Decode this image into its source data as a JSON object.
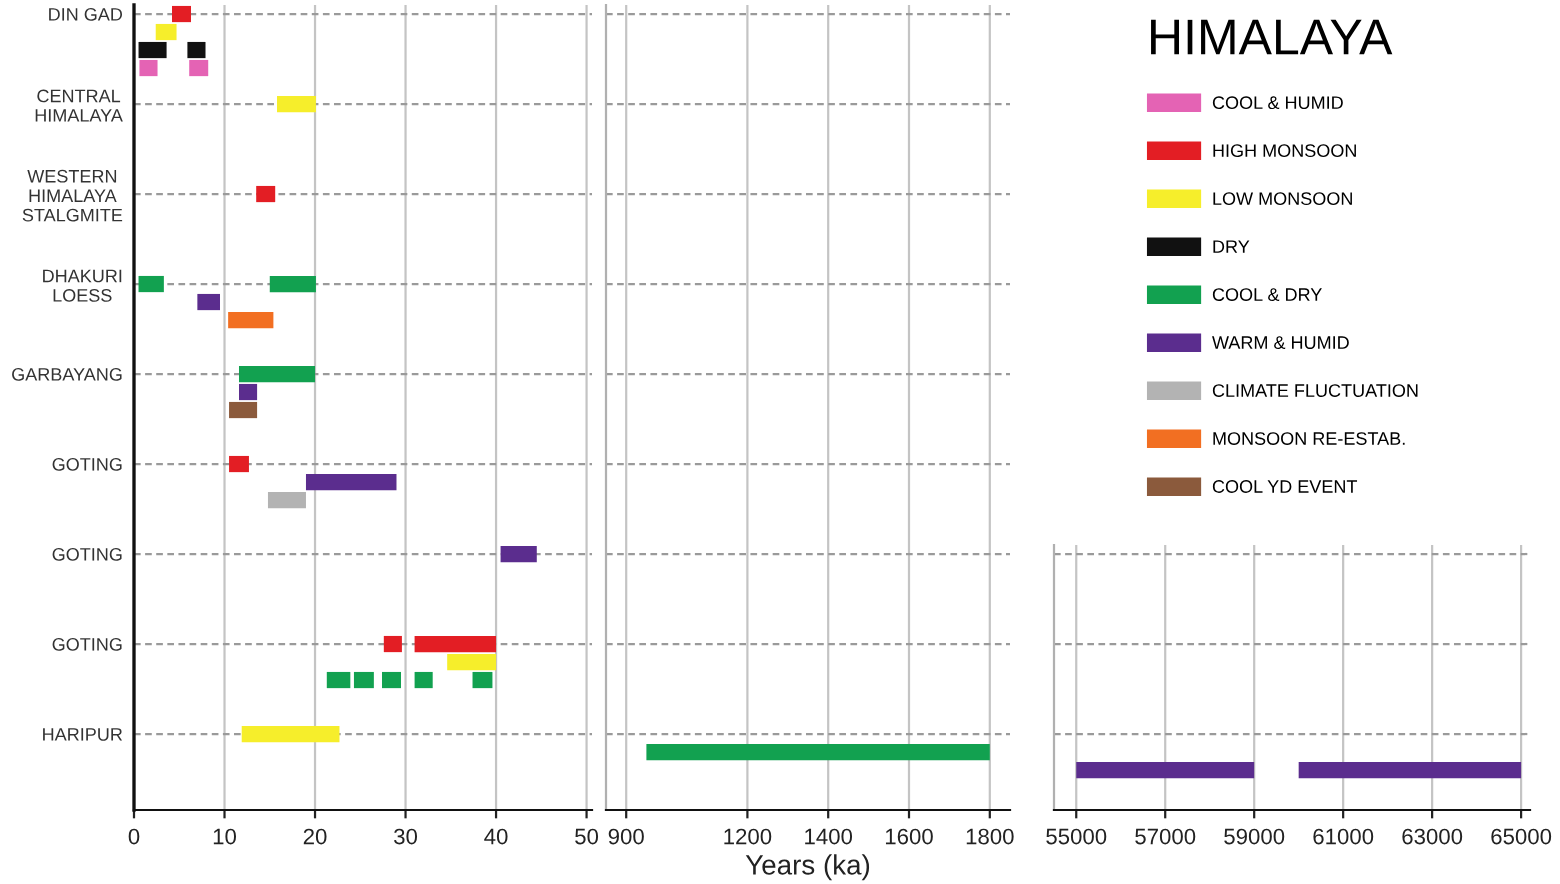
{
  "chart_data": [
    {
      "type": "bar",
      "orientation": "horizontal",
      "categories": [
        "DIN GAD",
        null,
        null,
        null,
        null,
        "CENTRAL\nHIMALAYA",
        null,
        null,
        null,
        null,
        "WESTERN\nHIMALAYA\nSTALGMITE",
        null,
        null,
        null,
        null,
        "DHAKURI\nLOESS",
        null,
        null,
        null,
        null,
        "GARBAYANG",
        null,
        null,
        null,
        null,
        "GOTING",
        null,
        null,
        null,
        null,
        "GOTING",
        null,
        null,
        null,
        null,
        "GOTING",
        null,
        null,
        null,
        null,
        "HARIPUR",
        null,
        null,
        null,
        null
      ],
      "series": [
        {
          "name": "COOL & HUMID",
          "color": "#e463b4",
          "values": [
            null,
            null,
            null,
            2.0,
            null,
            null,
            null,
            null,
            null,
            null,
            null,
            null,
            null,
            null,
            null,
            null,
            null,
            null,
            null,
            null,
            null,
            null,
            null,
            null,
            null,
            null,
            null,
            null,
            null,
            null,
            null,
            null,
            null,
            null,
            null,
            null,
            null,
            null,
            null,
            null,
            null,
            null,
            null,
            null,
            null
          ],
          "base": [
            null,
            null,
            null,
            0.6,
            null,
            null,
            null,
            null,
            null,
            null,
            null,
            null,
            null,
            null,
            null,
            null,
            null,
            null,
            null,
            null,
            null,
            null,
            null,
            null,
            null,
            null,
            null,
            null,
            null,
            null,
            null,
            null,
            null,
            null,
            null,
            null,
            null,
            null,
            null,
            null,
            null,
            null,
            null,
            null,
            null
          ]
        },
        {
          "color": "#e463b4",
          "values": [
            null,
            null,
            null,
            2.1,
            null,
            null,
            null,
            null,
            null,
            null,
            null,
            null,
            null,
            null,
            null,
            null,
            null,
            null,
            null,
            null,
            null,
            null,
            null,
            null,
            null,
            null,
            null,
            null,
            null,
            null,
            null,
            null,
            null,
            null,
            null,
            null,
            null,
            null,
            null,
            null,
            null,
            null,
            null,
            null,
            null
          ],
          "base": [
            null,
            null,
            null,
            6.1,
            null,
            null,
            null,
            null,
            null,
            null,
            null,
            null,
            null,
            null,
            null,
            null,
            null,
            null,
            null,
            null,
            null,
            null,
            null,
            null,
            null,
            null,
            null,
            null,
            null,
            null,
            null,
            null,
            null,
            null,
            null,
            null,
            null,
            null,
            null,
            null,
            null,
            null,
            null,
            null,
            null
          ]
        },
        {
          "name": "HIGH MONSOON",
          "color": "#e31e24",
          "values": [
            2.1,
            null,
            null,
            null,
            null,
            null,
            null,
            null,
            null,
            null,
            2.1,
            null,
            null,
            null,
            null,
            null,
            null,
            null,
            null,
            null,
            null,
            null,
            null,
            null,
            null,
            2.2,
            null,
            null,
            null,
            null,
            null,
            null,
            null,
            null,
            null,
            2.0,
            null,
            null,
            null,
            null,
            null,
            null,
            null,
            null,
            null
          ],
          "base": [
            4.2,
            null,
            null,
            null,
            null,
            null,
            null,
            null,
            null,
            null,
            13.5,
            null,
            null,
            null,
            null,
            null,
            null,
            null,
            null,
            null,
            null,
            null,
            null,
            null,
            null,
            10.5,
            null,
            null,
            null,
            null,
            null,
            null,
            null,
            null,
            null,
            27.6,
            null,
            null,
            null,
            null,
            null,
            null,
            null,
            null,
            null
          ]
        },
        {
          "color": "#e31e24",
          "values": [
            null,
            null,
            null,
            null,
            null,
            null,
            null,
            null,
            null,
            null,
            null,
            null,
            null,
            null,
            null,
            null,
            null,
            null,
            null,
            null,
            null,
            null,
            null,
            null,
            null,
            null,
            null,
            null,
            null,
            null,
            null,
            null,
            null,
            null,
            null,
            9.0,
            null,
            null,
            null,
            null,
            null,
            null,
            null,
            null,
            null
          ],
          "base": [
            null,
            null,
            null,
            null,
            null,
            null,
            null,
            null,
            null,
            null,
            null,
            null,
            null,
            null,
            null,
            null,
            null,
            null,
            null,
            null,
            null,
            null,
            null,
            null,
            null,
            null,
            null,
            null,
            null,
            null,
            null,
            null,
            null,
            null,
            null,
            31.0,
            null,
            null,
            null,
            null,
            null,
            null,
            null,
            null,
            null
          ]
        },
        {
          "name": "LOW MONSOON",
          "color": "#f6ee2b",
          "values": [
            null,
            2.3,
            null,
            null,
            null,
            4.3,
            null,
            null,
            null,
            null,
            null,
            null,
            null,
            null,
            null,
            null,
            null,
            null,
            null,
            null,
            null,
            null,
            null,
            null,
            null,
            null,
            null,
            null,
            null,
            null,
            null,
            null,
            null,
            null,
            null,
            null,
            5.4,
            null,
            null,
            null,
            10.8,
            null,
            null,
            null,
            null
          ],
          "base": [
            null,
            2.4,
            null,
            null,
            null,
            15.8,
            null,
            null,
            null,
            null,
            null,
            null,
            null,
            null,
            null,
            null,
            null,
            null,
            null,
            null,
            null,
            null,
            null,
            null,
            null,
            null,
            null,
            null,
            null,
            null,
            null,
            null,
            null,
            null,
            null,
            null,
            34.6,
            null,
            null,
            null,
            11.9,
            null,
            null,
            null,
            null
          ]
        },
        {
          "name": "DRY",
          "color": "#111111",
          "values": [
            null,
            null,
            3.1,
            null,
            null,
            null,
            null,
            null,
            null,
            null,
            null,
            null,
            null,
            null,
            null,
            null,
            null,
            null,
            null,
            null,
            null,
            null,
            null,
            null,
            null,
            null,
            null,
            null,
            null,
            null,
            null,
            null,
            null,
            null,
            null,
            null,
            null,
            null,
            null,
            null,
            null,
            null,
            null,
            null,
            null
          ],
          "base": [
            null,
            null,
            0.5,
            null,
            null,
            null,
            null,
            null,
            null,
            null,
            null,
            null,
            null,
            null,
            null,
            null,
            null,
            null,
            null,
            null,
            null,
            null,
            null,
            null,
            null,
            null,
            null,
            null,
            null,
            null,
            null,
            null,
            null,
            null,
            null,
            null,
            null,
            null,
            null,
            null,
            null,
            null,
            null,
            null,
            null
          ]
        },
        {
          "color": "#111111",
          "values": [
            null,
            null,
            2.0,
            null,
            null,
            null,
            null,
            null,
            null,
            null,
            null,
            null,
            null,
            null,
            null,
            null,
            null,
            null,
            null,
            null,
            null,
            null,
            null,
            null,
            null,
            null,
            null,
            null,
            null,
            null,
            null,
            null,
            null,
            null,
            null,
            null,
            null,
            null,
            null,
            null,
            null,
            null,
            null,
            null,
            null
          ],
          "base": [
            null,
            null,
            5.9,
            null,
            null,
            null,
            null,
            null,
            null,
            null,
            null,
            null,
            null,
            null,
            null,
            null,
            null,
            null,
            null,
            null,
            null,
            null,
            null,
            null,
            null,
            null,
            null,
            null,
            null,
            null,
            null,
            null,
            null,
            null,
            null,
            null,
            null,
            null,
            null,
            null,
            null,
            null,
            null,
            null,
            null
          ]
        },
        {
          "name": "COOL & DRY",
          "color": "#12a150",
          "values": [
            null,
            null,
            null,
            null,
            null,
            null,
            null,
            null,
            null,
            null,
            null,
            null,
            null,
            null,
            null,
            2.8,
            null,
            null,
            null,
            null,
            8.4,
            null,
            null,
            null,
            null,
            null,
            null,
            null,
            null,
            null,
            null,
            null,
            null,
            null,
            null,
            null,
            null,
            2.6,
            null,
            null,
            null,
            null,
            null,
            null,
            null
          ],
          "base": [
            null,
            null,
            null,
            null,
            null,
            null,
            null,
            null,
            null,
            null,
            null,
            null,
            null,
            null,
            null,
            0.5,
            null,
            null,
            null,
            null,
            11.6,
            null,
            null,
            null,
            null,
            null,
            null,
            null,
            null,
            null,
            null,
            null,
            null,
            null,
            null,
            null,
            null,
            21.3,
            null,
            null,
            null,
            null,
            null,
            null,
            null
          ]
        },
        {
          "color": "#12a150",
          "values": [
            null,
            null,
            null,
            null,
            null,
            null,
            null,
            null,
            null,
            null,
            null,
            null,
            null,
            null,
            null,
            5.1,
            null,
            null,
            null,
            null,
            null,
            null,
            null,
            null,
            null,
            null,
            null,
            null,
            null,
            null,
            null,
            null,
            null,
            null,
            null,
            null,
            null,
            2.2,
            null,
            null,
            null,
            null,
            null,
            null,
            null
          ],
          "base": [
            null,
            null,
            null,
            null,
            null,
            null,
            null,
            null,
            null,
            null,
            null,
            null,
            null,
            null,
            null,
            15.0,
            null,
            null,
            null,
            null,
            null,
            null,
            null,
            null,
            null,
            null,
            null,
            null,
            null,
            null,
            null,
            null,
            null,
            null,
            null,
            null,
            null,
            24.3,
            null,
            null,
            null,
            null,
            null,
            null,
            null
          ]
        },
        {
          "color": "#12a150",
          "values": [
            null,
            null,
            null,
            null,
            null,
            null,
            null,
            null,
            null,
            null,
            null,
            null,
            null,
            null,
            null,
            null,
            null,
            null,
            null,
            null,
            null,
            null,
            null,
            null,
            null,
            null,
            null,
            null,
            null,
            null,
            null,
            null,
            null,
            null,
            null,
            null,
            null,
            2.1,
            null,
            null,
            null,
            null,
            null,
            null,
            null
          ],
          "base": [
            null,
            null,
            null,
            null,
            null,
            null,
            null,
            null,
            null,
            null,
            null,
            null,
            null,
            null,
            null,
            null,
            null,
            null,
            null,
            null,
            null,
            null,
            null,
            null,
            null,
            null,
            null,
            null,
            null,
            null,
            null,
            null,
            null,
            null,
            null,
            null,
            null,
            27.4,
            null,
            null,
            null,
            null,
            null,
            null,
            null
          ]
        },
        {
          "color": "#12a150",
          "values": [
            null,
            null,
            null,
            null,
            null,
            null,
            null,
            null,
            null,
            null,
            null,
            null,
            null,
            null,
            null,
            null,
            null,
            null,
            null,
            null,
            null,
            null,
            null,
            null,
            null,
            null,
            null,
            null,
            null,
            null,
            null,
            null,
            null,
            null,
            null,
            null,
            null,
            2.0,
            null,
            null,
            null,
            null,
            null,
            null,
            null
          ],
          "base": [
            null,
            null,
            null,
            null,
            null,
            null,
            null,
            null,
            null,
            null,
            null,
            null,
            null,
            null,
            null,
            null,
            null,
            null,
            null,
            null,
            null,
            null,
            null,
            null,
            null,
            null,
            null,
            null,
            null,
            null,
            null,
            null,
            null,
            null,
            null,
            null,
            null,
            31.0,
            null,
            null,
            null,
            null,
            null,
            null,
            null
          ]
        },
        {
          "color": "#12a150",
          "values": [
            null,
            null,
            null,
            null,
            null,
            null,
            null,
            null,
            null,
            null,
            null,
            null,
            null,
            null,
            null,
            null,
            null,
            null,
            null,
            null,
            null,
            null,
            null,
            null,
            null,
            null,
            null,
            null,
            null,
            null,
            null,
            null,
            null,
            null,
            null,
            null,
            null,
            2.2,
            null,
            null,
            null,
            null,
            null,
            null,
            null
          ],
          "base": [
            null,
            null,
            null,
            null,
            null,
            null,
            null,
            null,
            null,
            null,
            null,
            null,
            null,
            null,
            null,
            null,
            null,
            null,
            null,
            null,
            null,
            null,
            null,
            null,
            null,
            null,
            null,
            null,
            null,
            null,
            null,
            null,
            null,
            null,
            null,
            null,
            null,
            37.4,
            null,
            null,
            null,
            null,
            null,
            null,
            null
          ]
        },
        {
          "name": "WARM & HUMID",
          "color": "#5b2d8e",
          "values": [
            null,
            null,
            null,
            null,
            null,
            null,
            null,
            null,
            null,
            null,
            null,
            null,
            null,
            null,
            null,
            null,
            2.5,
            null,
            null,
            null,
            null,
            2.0,
            null,
            null,
            null,
            null,
            10.0,
            null,
            null,
            null,
            4.0,
            null,
            null,
            null,
            null,
            null,
            null,
            null,
            null,
            null,
            null,
            null,
            null,
            null,
            null
          ],
          "base": [
            null,
            null,
            null,
            null,
            null,
            null,
            null,
            null,
            null,
            null,
            null,
            null,
            null,
            null,
            null,
            null,
            7.0,
            null,
            null,
            null,
            null,
            11.6,
            null,
            null,
            null,
            null,
            19.0,
            null,
            null,
            null,
            40.5,
            null,
            null,
            null,
            null,
            null,
            null,
            null,
            null,
            null,
            null,
            null,
            null,
            null,
            null
          ]
        },
        {
          "name": "CLIMATE FLUCTUATION",
          "color": "#b3b3b3",
          "values": [
            null,
            null,
            null,
            null,
            null,
            null,
            null,
            null,
            null,
            null,
            null,
            null,
            null,
            null,
            null,
            null,
            null,
            null,
            null,
            null,
            null,
            null,
            null,
            null,
            null,
            null,
            null,
            4.2,
            null,
            null,
            null,
            null,
            null,
            null,
            null,
            null,
            null,
            null,
            null,
            null,
            null,
            null,
            null,
            null,
            null
          ],
          "base": [
            null,
            null,
            null,
            null,
            null,
            null,
            null,
            null,
            null,
            null,
            null,
            null,
            null,
            null,
            null,
            null,
            null,
            null,
            null,
            null,
            null,
            null,
            null,
            null,
            null,
            null,
            null,
            14.8,
            null,
            null,
            null,
            null,
            null,
            null,
            null,
            null,
            null,
            null,
            null,
            null,
            null,
            null,
            null,
            null,
            null
          ]
        },
        {
          "name": "MONSOON RE-ESTAB.",
          "color": "#f26f22",
          "values": [
            null,
            null,
            null,
            null,
            null,
            null,
            null,
            null,
            null,
            null,
            null,
            null,
            null,
            null,
            null,
            null,
            null,
            5.0,
            null,
            null,
            null,
            null,
            null,
            null,
            null,
            null,
            null,
            null,
            null,
            null,
            null,
            null,
            null,
            null,
            null,
            null,
            null,
            null,
            null,
            null,
            null,
            null,
            null,
            null,
            null
          ],
          "base": [
            null,
            null,
            null,
            null,
            null,
            null,
            null,
            null,
            null,
            null,
            null,
            null,
            null,
            null,
            null,
            null,
            null,
            10.4,
            null,
            null,
            null,
            null,
            null,
            null,
            null,
            null,
            null,
            null,
            null,
            null,
            null,
            null,
            null,
            null,
            null,
            null,
            null,
            null,
            null,
            null,
            null,
            null,
            null,
            null,
            null
          ]
        },
        {
          "name": "COOL YD EVENT",
          "color": "#8b5a3c",
          "values": [
            null,
            null,
            null,
            null,
            null,
            null,
            null,
            null,
            null,
            null,
            null,
            null,
            null,
            null,
            null,
            null,
            null,
            null,
            null,
            null,
            null,
            null,
            3.1,
            null,
            null,
            null,
            null,
            null,
            null,
            null,
            null,
            null,
            null,
            null,
            null,
            null,
            null,
            null,
            null,
            null,
            null,
            null,
            null,
            null,
            null
          ],
          "base": [
            null,
            null,
            null,
            null,
            null,
            null,
            null,
            null,
            null,
            null,
            null,
            null,
            null,
            null,
            null,
            null,
            null,
            null,
            null,
            null,
            null,
            null,
            10.5,
            null,
            null,
            null,
            null,
            null,
            null,
            null,
            null,
            null,
            null,
            null,
            null,
            null,
            null,
            null,
            null,
            null,
            null,
            null,
            null,
            null,
            null
          ]
        }
      ],
      "xlim": [
        0,
        50.6
      ],
      "xticks": [
        0,
        10,
        20,
        30,
        40,
        50
      ],
      "grid": true,
      "legend": "top right",
      "legend_title": "HIMALAYA"
    },
    {
      "type": "bar",
      "orientation": "horizontal",
      "categories": [
        null,
        null,
        null,
        null,
        null,
        null,
        null,
        null,
        null,
        null,
        null,
        null,
        null,
        null,
        null,
        null,
        null,
        null,
        null,
        null,
        null,
        null,
        null,
        null,
        null,
        null,
        null,
        null,
        null,
        null,
        null,
        null,
        null,
        null,
        null,
        null,
        null,
        null,
        null,
        null,
        null,
        null,
        null,
        null,
        null
      ],
      "series": [
        {
          "color": "#12a150",
          "values": [
            null,
            null,
            null,
            null,
            null,
            null,
            null,
            null,
            null,
            null,
            null,
            null,
            null,
            null,
            null,
            null,
            null,
            null,
            null,
            null,
            null,
            null,
            null,
            null,
            null,
            null,
            null,
            null,
            null,
            null,
            null,
            null,
            null,
            null,
            null,
            null,
            null,
            null,
            null,
            null,
            null,
            850,
            null,
            null,
            null
          ],
          "base": [
            null,
            null,
            null,
            null,
            null,
            null,
            null,
            null,
            null,
            null,
            null,
            null,
            null,
            null,
            null,
            null,
            null,
            null,
            null,
            null,
            null,
            null,
            null,
            null,
            null,
            null,
            null,
            null,
            null,
            null,
            null,
            null,
            null,
            null,
            null,
            null,
            null,
            null,
            null,
            null,
            null,
            950,
            null,
            null,
            null
          ]
        }
      ],
      "xlim": [
        850,
        1850
      ],
      "xticks": [
        900,
        1200,
        1400,
        1600,
        1800
      ],
      "xlabel": "Years (ka)",
      "grid": true,
      "tick_labels": "x"
    },
    {
      "type": "bar",
      "orientation": "horizontal",
      "categories": [
        null,
        null,
        null,
        null,
        null,
        null,
        null,
        null,
        null,
        null,
        null,
        null,
        null,
        null,
        null
      ],
      "series": [
        {
          "color": "#5b2d8e",
          "values": [
            null,
            null,
            null,
            null,
            null,
            null,
            null,
            null,
            null,
            null,
            null,
            null,
            4000,
            null,
            null
          ],
          "base": [
            null,
            null,
            null,
            null,
            null,
            null,
            null,
            null,
            null,
            null,
            null,
            null,
            55000,
            null,
            null
          ]
        },
        {
          "color": "#5b2d8e",
          "values": [
            null,
            null,
            null,
            null,
            null,
            null,
            null,
            null,
            null,
            null,
            null,
            null,
            5000,
            null,
            null
          ],
          "base": [
            null,
            null,
            null,
            null,
            null,
            null,
            null,
            null,
            null,
            null,
            null,
            null,
            60000,
            null,
            null
          ]
        }
      ],
      "xlim": [
        54500,
        65200
      ],
      "xticks": [
        55000,
        57000,
        59000,
        61000,
        63000,
        65000
      ],
      "grid": true,
      "tick_labels": "x"
    }
  ]
}
